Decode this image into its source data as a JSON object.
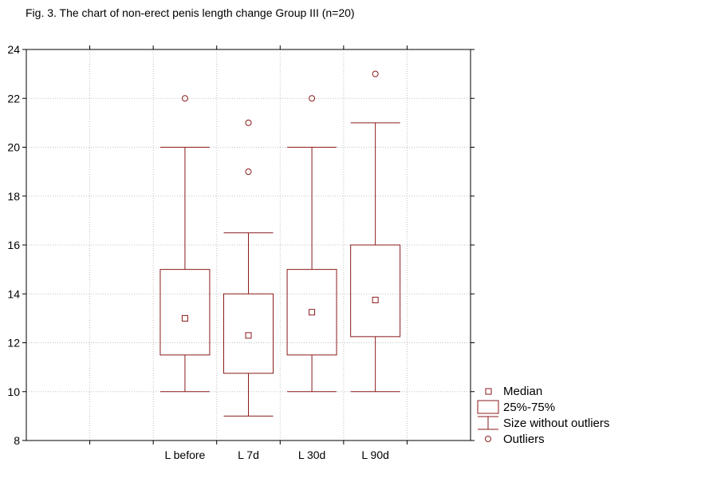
{
  "chart_data": {
    "type": "boxplot",
    "title": "Fig. 3. The chart of non-erect penis length change Group III (n=20)",
    "xlabel": "",
    "ylabel": "",
    "ylim": [
      8,
      24
    ],
    "yticks": [
      8,
      10,
      12,
      14,
      16,
      18,
      20,
      22,
      24
    ],
    "grid": true,
    "categories": [
      "L before",
      "L 7d",
      "L 30d",
      "L 90d"
    ],
    "series": [
      {
        "name": "L before",
        "median": 13.0,
        "q1": 11.5,
        "q3": 15.0,
        "min": 10.0,
        "max": 20.0,
        "outliers": [
          22
        ]
      },
      {
        "name": "L 7d",
        "median": 12.3,
        "q1": 10.75,
        "q3": 14.0,
        "min": 9.0,
        "max": 16.5,
        "outliers": [
          21,
          19
        ]
      },
      {
        "name": "L 30d",
        "median": 13.25,
        "q1": 11.5,
        "q3": 15.0,
        "min": 10.0,
        "max": 20.0,
        "outliers": [
          22
        ]
      },
      {
        "name": "L 90d",
        "median": 13.75,
        "q1": 12.25,
        "q3": 16.0,
        "min": 10.0,
        "max": 21.0,
        "outliers": [
          23
        ]
      }
    ],
    "legend": {
      "placement": "bottom-right",
      "items": [
        "Median",
        "25%-75%",
        "Size without outliers",
        "Outliers"
      ]
    },
    "colors": {
      "series": "#8b1a1a",
      "grid": "#c0c0c0",
      "axis": "#000000"
    }
  }
}
